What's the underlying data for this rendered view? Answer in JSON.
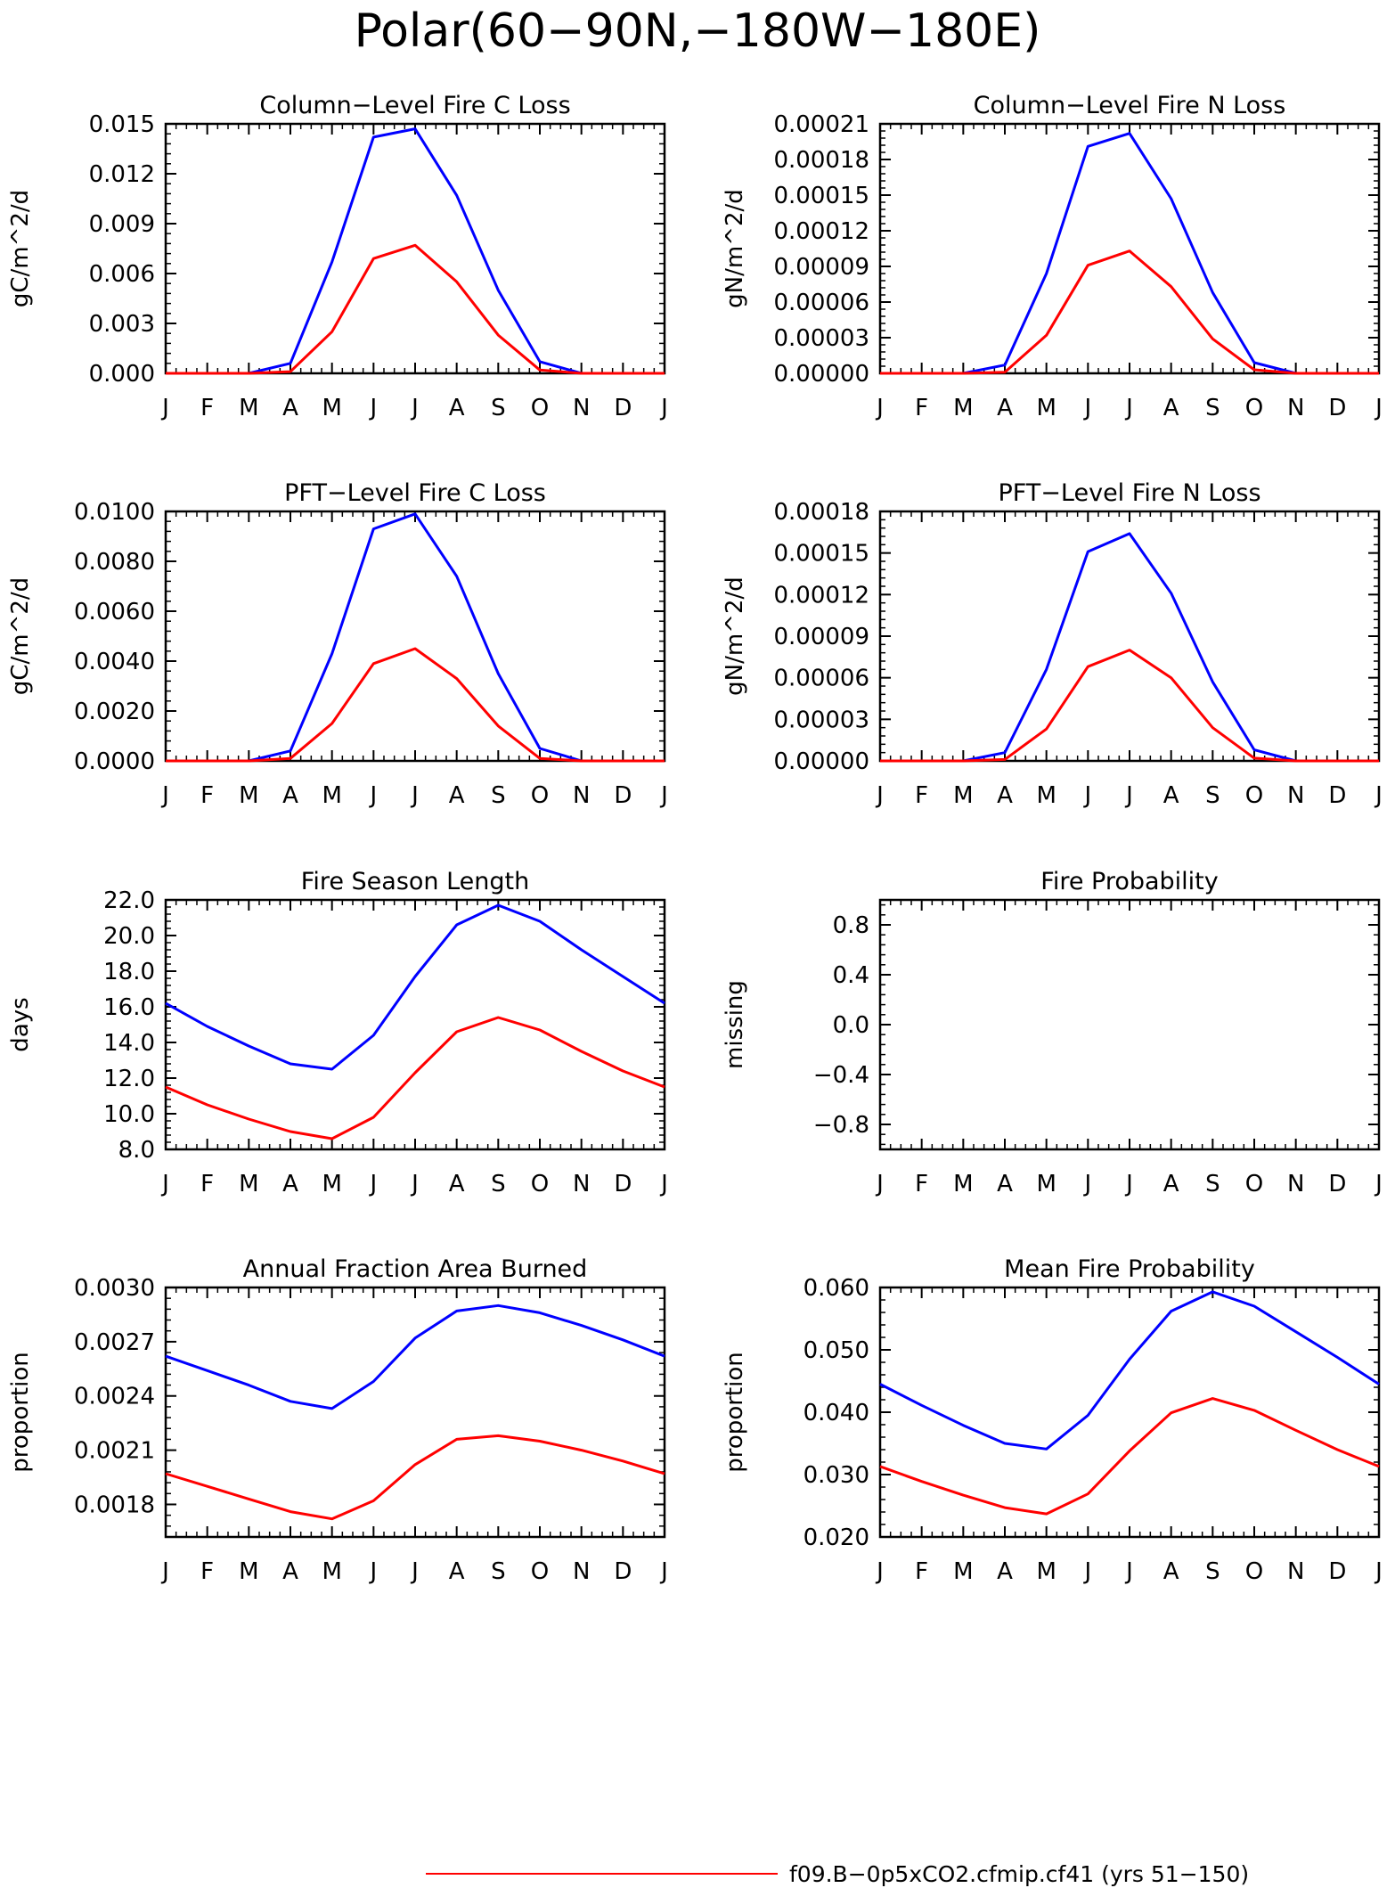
{
  "figure": {
    "title": "Polar(60−90N,−180W−180E)",
    "legend": {
      "entries": [
        {
          "label": "f09.B−0p5xCO2.cfmip.cf41 (yrs 51−150)",
          "color": "#ff0000"
        }
      ]
    },
    "colors": {
      "series_a": "#0000ff",
      "series_b": "#ff0000"
    }
  },
  "chart_data": [
    {
      "id": "column_fire_c_loss",
      "type": "line",
      "title": "Column−Level Fire C Loss",
      "xlabel": "",
      "ylabel": "gC/m^2/d",
      "categories": [
        "J",
        "F",
        "M",
        "A",
        "M",
        "J",
        "J",
        "A",
        "S",
        "O",
        "N",
        "D",
        "J"
      ],
      "ylim": [
        0,
        0.015
      ],
      "yticks": [
        "0.000",
        "0.003",
        "0.006",
        "0.009",
        "0.012",
        "0.015"
      ],
      "series": [
        {
          "color": "#0000ff",
          "values": [
            0,
            0,
            0,
            0.0006,
            0.0067,
            0.0142,
            0.0147,
            0.0107,
            0.005,
            0.0007,
            0,
            0,
            0
          ]
        },
        {
          "color": "#ff0000",
          "values": [
            0,
            0,
            0,
            0.0001,
            0.0025,
            0.0069,
            0.0077,
            0.0055,
            0.0023,
            0.0002,
            0,
            0,
            0
          ]
        }
      ]
    },
    {
      "id": "column_fire_n_loss",
      "type": "line",
      "title": "Column−Level Fire N Loss",
      "xlabel": "",
      "ylabel": "gN/m^2/d",
      "categories": [
        "J",
        "F",
        "M",
        "A",
        "M",
        "J",
        "J",
        "A",
        "S",
        "O",
        "N",
        "D",
        "J"
      ],
      "ylim": [
        0,
        0.00021
      ],
      "yticks": [
        "0.00000",
        "0.00003",
        "0.00006",
        "0.00009",
        "0.00012",
        "0.00015",
        "0.00018",
        "0.00021"
      ],
      "series": [
        {
          "color": "#0000ff",
          "values": [
            0,
            0,
            0,
            7e-06,
            8.4e-05,
            0.000191,
            0.000202,
            0.000147,
            6.8e-05,
            9e-06,
            0,
            0,
            0
          ]
        },
        {
          "color": "#ff0000",
          "values": [
            0,
            0,
            0,
            1e-06,
            3.2e-05,
            9.1e-05,
            0.000103,
            7.3e-05,
            2.9e-05,
            3e-06,
            0,
            0,
            0
          ]
        }
      ]
    },
    {
      "id": "pft_fire_c_loss",
      "type": "line",
      "title": "PFT−Level Fire C Loss",
      "xlabel": "",
      "ylabel": "gC/m^2/d",
      "categories": [
        "J",
        "F",
        "M",
        "A",
        "M",
        "J",
        "J",
        "A",
        "S",
        "O",
        "N",
        "D",
        "J"
      ],
      "ylim": [
        0,
        0.01
      ],
      "yticks": [
        "0.0000",
        "0.0020",
        "0.0040",
        "0.0060",
        "0.0080",
        "0.0100"
      ],
      "series": [
        {
          "color": "#0000ff",
          "values": [
            0,
            0,
            0,
            0.0004,
            0.0043,
            0.0093,
            0.0099,
            0.0074,
            0.0035,
            0.0005,
            0,
            0,
            0
          ]
        },
        {
          "color": "#ff0000",
          "values": [
            0,
            0,
            0,
            0.0001,
            0.0015,
            0.0039,
            0.0045,
            0.0033,
            0.0014,
            0.0001,
            0,
            0,
            0
          ]
        }
      ]
    },
    {
      "id": "pft_fire_n_loss",
      "type": "line",
      "title": "PFT−Level Fire N Loss",
      "xlabel": "",
      "ylabel": "gN/m^2/d",
      "categories": [
        "J",
        "F",
        "M",
        "A",
        "M",
        "J",
        "J",
        "A",
        "S",
        "O",
        "N",
        "D",
        "J"
      ],
      "ylim": [
        0,
        0.00018
      ],
      "yticks": [
        "0.00000",
        "0.00003",
        "0.00006",
        "0.00009",
        "0.00012",
        "0.00015",
        "0.00018"
      ],
      "series": [
        {
          "color": "#0000ff",
          "values": [
            0,
            0,
            0,
            6e-06,
            6.6e-05,
            0.000151,
            0.000164,
            0.000121,
            5.7e-05,
            8e-06,
            0,
            0,
            0
          ]
        },
        {
          "color": "#ff0000",
          "values": [
            0,
            0,
            0,
            1e-06,
            2.3e-05,
            6.8e-05,
            8e-05,
            6e-05,
            2.4e-05,
            2e-06,
            0,
            0,
            0
          ]
        }
      ]
    },
    {
      "id": "fire_season_length",
      "type": "line",
      "title": "Fire Season Length",
      "xlabel": "",
      "ylabel": "days",
      "categories": [
        "J",
        "F",
        "M",
        "A",
        "M",
        "J",
        "J",
        "A",
        "S",
        "O",
        "N",
        "D",
        "J"
      ],
      "ylim": [
        8,
        22
      ],
      "yticks": [
        "8.0",
        "10.0",
        "12.0",
        "14.0",
        "16.0",
        "18.0",
        "20.0",
        "22.0"
      ],
      "series": [
        {
          "color": "#0000ff",
          "values": [
            16.2,
            14.9,
            13.8,
            12.8,
            12.5,
            14.4,
            17.7,
            20.6,
            21.7,
            20.8,
            19.2,
            17.7,
            16.2
          ]
        },
        {
          "color": "#ff0000",
          "values": [
            11.5,
            10.5,
            9.7,
            9.0,
            8.6,
            9.8,
            12.3,
            14.6,
            15.4,
            14.7,
            13.5,
            12.4,
            11.5
          ]
        }
      ]
    },
    {
      "id": "fire_probability",
      "type": "line",
      "title": "Fire Probability",
      "xlabel": "",
      "ylabel": "missing",
      "categories": [
        "J",
        "F",
        "M",
        "A",
        "M",
        "J",
        "J",
        "A",
        "S",
        "O",
        "N",
        "D",
        "J"
      ],
      "ylim": [
        -1,
        1
      ],
      "yticks": [
        "−0.8",
        "−0.4",
        "0.0",
        "0.4",
        "0.8"
      ],
      "ytick_values": [
        -0.8,
        -0.4,
        0,
        0.4,
        0.8
      ],
      "series": []
    },
    {
      "id": "annual_fraction_area_burned",
      "type": "line",
      "title": "Annual Fraction Area Burned",
      "xlabel": "",
      "ylabel": "proportion",
      "categories": [
        "J",
        "F",
        "M",
        "A",
        "M",
        "J",
        "J",
        "A",
        "S",
        "O",
        "N",
        "D",
        "J"
      ],
      "ylim": [
        0.00162,
        0.003
      ],
      "yticks": [
        "0.0018",
        "0.0021",
        "0.0024",
        "0.0027",
        "0.0030"
      ],
      "ytick_values": [
        0.0018,
        0.0021,
        0.0024,
        0.0027,
        0.003
      ],
      "series": [
        {
          "color": "#0000ff",
          "values": [
            0.00262,
            0.00254,
            0.00246,
            0.00237,
            0.00233,
            0.00248,
            0.00272,
            0.00287,
            0.0029,
            0.00286,
            0.00279,
            0.00271,
            0.00262
          ]
        },
        {
          "color": "#ff0000",
          "values": [
            0.00197,
            0.0019,
            0.00183,
            0.00176,
            0.00172,
            0.00182,
            0.00202,
            0.00216,
            0.00218,
            0.00215,
            0.0021,
            0.00204,
            0.00197
          ]
        }
      ]
    },
    {
      "id": "mean_fire_probability",
      "type": "line",
      "title": "Mean Fire Probability",
      "xlabel": "",
      "ylabel": "proportion",
      "categories": [
        "J",
        "F",
        "M",
        "A",
        "M",
        "J",
        "J",
        "A",
        "S",
        "O",
        "N",
        "D",
        "J"
      ],
      "ylim": [
        0.02,
        0.06
      ],
      "yticks": [
        "0.020",
        "0.030",
        "0.040",
        "0.050",
        "0.060"
      ],
      "series": [
        {
          "color": "#0000ff",
          "values": [
            0.0445,
            0.0411,
            0.0379,
            0.035,
            0.0341,
            0.0395,
            0.0485,
            0.0562,
            0.0593,
            0.057,
            0.0529,
            0.0488,
            0.0445
          ]
        },
        {
          "color": "#ff0000",
          "values": [
            0.0313,
            0.0289,
            0.0267,
            0.0247,
            0.0237,
            0.0269,
            0.0338,
            0.0399,
            0.0422,
            0.0403,
            0.0371,
            0.034,
            0.0313
          ]
        }
      ]
    }
  ]
}
